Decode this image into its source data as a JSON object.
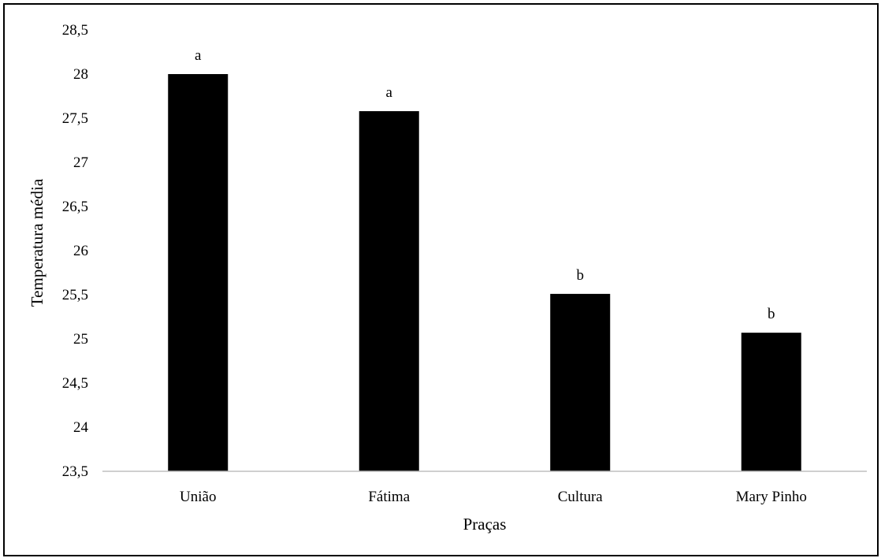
{
  "chart_data": {
    "type": "bar",
    "categories": [
      "União",
      "Fátima",
      "Cultura",
      "Mary Pinho"
    ],
    "values": [
      28.0,
      27.58,
      25.51,
      25.07
    ],
    "data_labels": [
      "a",
      "a",
      "b",
      "b"
    ],
    "xlabel": "Praças",
    "ylabel": "Temperatura média",
    "ylim": [
      23.5,
      28.5
    ],
    "yticks": [
      "28,5",
      "28",
      "27,5",
      "27",
      "26,5",
      "26",
      "25,5",
      "25",
      "24,5",
      "24",
      "23,5"
    ],
    "ytick_values": [
      28.5,
      28,
      27.5,
      27,
      26.5,
      26,
      25.5,
      25,
      24.5,
      24,
      23.5
    ],
    "grid": false,
    "legend": "none",
    "bar_color": "#000000"
  }
}
